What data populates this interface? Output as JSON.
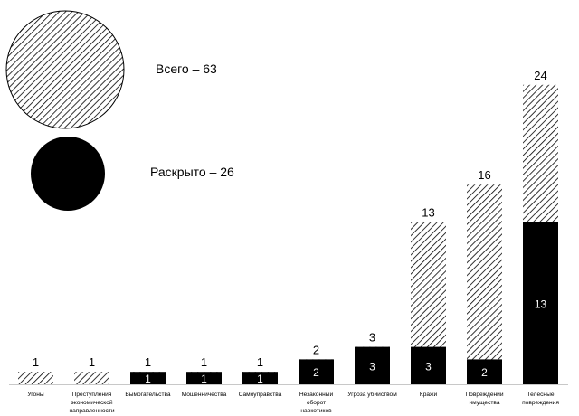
{
  "chart_data": {
    "type": "bar",
    "stacked": "overlay",
    "categories": [
      [
        "Угоны"
      ],
      [
        "Преступления",
        "экономической",
        "направленности"
      ],
      [
        "Вымогательства"
      ],
      [
        "Мошенничества"
      ],
      [
        "Самоуправства"
      ],
      [
        "Незаконный",
        "оборот",
        "наркотиков"
      ],
      [
        "Угроза убийством"
      ],
      [
        "Кражи"
      ],
      [
        "Повреждений",
        "имущества"
      ],
      [
        "Телесные",
        "повреждения"
      ]
    ],
    "series": [
      {
        "name": "Всего",
        "values": [
          1,
          1,
          1,
          1,
          1,
          2,
          3,
          13,
          16,
          24
        ],
        "pattern": "hatched"
      },
      {
        "name": "Раскрыто",
        "values": [
          0,
          0,
          1,
          1,
          1,
          2,
          3,
          3,
          2,
          13
        ],
        "pattern": "solid"
      }
    ],
    "legend": {
      "placement": "top-left",
      "entries": [
        "Всего – 63",
        "Раскрыто – 26"
      ]
    },
    "ylim": [
      0,
      24
    ],
    "grid": false
  }
}
